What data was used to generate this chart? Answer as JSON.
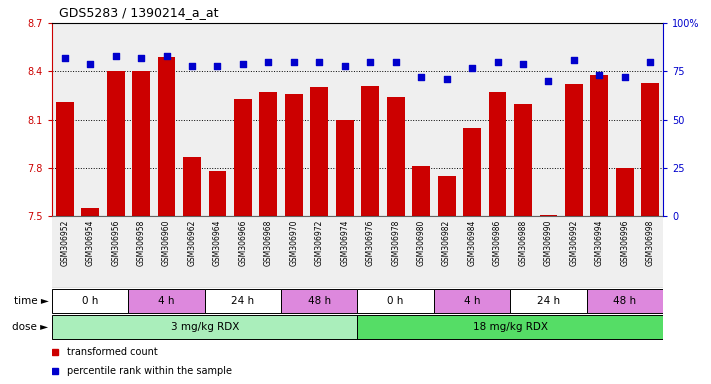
{
  "title": "GDS5283 / 1390214_a_at",
  "samples": [
    "GSM306952",
    "GSM306954",
    "GSM306956",
    "GSM306958",
    "GSM306960",
    "GSM306962",
    "GSM306964",
    "GSM306966",
    "GSM306968",
    "GSM306970",
    "GSM306972",
    "GSM306974",
    "GSM306976",
    "GSM306978",
    "GSM306980",
    "GSM306982",
    "GSM306984",
    "GSM306986",
    "GSM306988",
    "GSM306990",
    "GSM306992",
    "GSM306994",
    "GSM306996",
    "GSM306998"
  ],
  "bar_values": [
    8.21,
    7.55,
    8.4,
    8.4,
    8.49,
    7.87,
    7.78,
    8.23,
    8.27,
    8.26,
    8.3,
    8.1,
    8.31,
    8.24,
    7.81,
    7.75,
    8.05,
    8.27,
    8.2,
    7.51,
    8.32,
    8.38,
    7.8,
    8.33
  ],
  "percentile_values": [
    82,
    79,
    83,
    82,
    83,
    78,
    78,
    79,
    80,
    80,
    80,
    78,
    80,
    80,
    72,
    71,
    77,
    80,
    79,
    70,
    81,
    73,
    72,
    80
  ],
  "ylim_left": [
    7.5,
    8.7
  ],
  "ylim_right": [
    0,
    100
  ],
  "yticks_left": [
    7.5,
    7.8,
    8.1,
    8.4,
    8.7
  ],
  "yticks_right": [
    0,
    25,
    50,
    75,
    100
  ],
  "bar_color": "#cc0000",
  "dot_color": "#0000cc",
  "bar_bottom": 7.5,
  "dose_groups": [
    {
      "label": "3 mg/kg RDX",
      "start": 0,
      "end": 12,
      "color": "#aaeebb"
    },
    {
      "label": "18 mg/kg RDX",
      "start": 12,
      "end": 24,
      "color": "#55dd66"
    }
  ],
  "time_groups": [
    {
      "label": "0 h",
      "start": 0,
      "end": 3,
      "color": "#ffffff"
    },
    {
      "label": "4 h",
      "start": 3,
      "end": 6,
      "color": "#dd88dd"
    },
    {
      "label": "24 h",
      "start": 6,
      "end": 9,
      "color": "#ffffff"
    },
    {
      "label": "48 h",
      "start": 9,
      "end": 12,
      "color": "#dd88dd"
    },
    {
      "label": "0 h",
      "start": 12,
      "end": 15,
      "color": "#ffffff"
    },
    {
      "label": "4 h",
      "start": 15,
      "end": 18,
      "color": "#dd88dd"
    },
    {
      "label": "24 h",
      "start": 18,
      "end": 21,
      "color": "#ffffff"
    },
    {
      "label": "48 h",
      "start": 21,
      "end": 24,
      "color": "#dd88dd"
    }
  ],
  "legend_items": [
    {
      "label": "transformed count",
      "color": "#cc0000"
    },
    {
      "label": "percentile rank within the sample",
      "color": "#0000cc"
    }
  ],
  "col_bg_color": "#dddddd"
}
